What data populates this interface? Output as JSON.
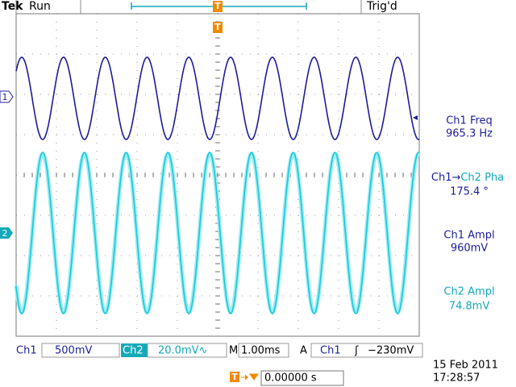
{
  "header": {
    "brand": "Tek",
    "status": "Run",
    "trigger_status": "Trig'd",
    "trigger_marker": "T"
  },
  "channel_markers": [
    "1",
    "2"
  ],
  "measurements": [
    {
      "label": "Ch1 Freq",
      "value": "965.3 Hz"
    },
    {
      "label_parts": [
        "Ch1→",
        "Ch2 Pha"
      ],
      "value": "175.4 °"
    },
    {
      "label": "Ch1 Ampl",
      "value": "960mV"
    },
    {
      "label": "Ch2 Ampl",
      "value": "74.8mV"
    }
  ],
  "status_bar": {
    "ch1": {
      "name": "Ch1",
      "scale": "500mV"
    },
    "ch2": {
      "name": "Ch2",
      "scale": "20.0mV∿"
    },
    "timebase": {
      "prefix": "M",
      "value": "1.00ms"
    },
    "trigger": {
      "mode": "A",
      "source": "Ch1",
      "slope": "ʃ",
      "level": "−230mV"
    }
  },
  "trigger_offset": {
    "marker": "T",
    "value": "0.00000 s"
  },
  "date": "15 Feb 2011",
  "time": "17:28:57"
}
